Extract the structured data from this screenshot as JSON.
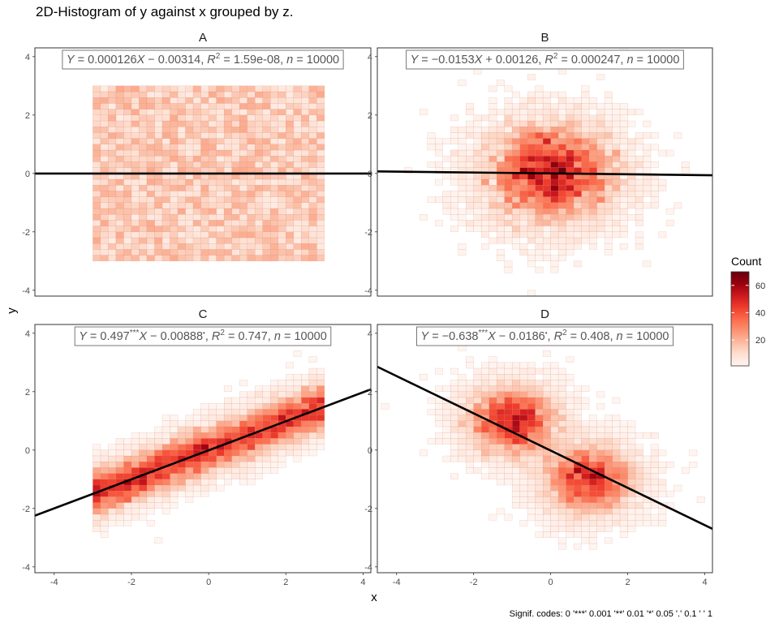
{
  "title": "2D-Histogram of y against x grouped by z.",
  "xlabel": "x",
  "ylabel": "y",
  "caption": "Signif. codes:  0 '***' 0.001 '**' 0.01 '*' 0.05 '.' 0.1 ' ' 1",
  "legend": {
    "title": "Count",
    "ticks": [
      20,
      40,
      60
    ],
    "range": [
      1,
      70
    ],
    "position": "right",
    "colors": [
      "#fff5f0",
      "#fee0d2",
      "#fcbba1",
      "#fc9272",
      "#fb6a4a",
      "#ef3b2c",
      "#cb181d",
      "#99000d",
      "#67000d"
    ]
  },
  "chart_data": {
    "type": "heatmap",
    "facet_by": "z",
    "xlim": [
      -4.5,
      4.2
    ],
    "ylim": [
      -4.2,
      4.3
    ],
    "x_ticks": [
      -4,
      -2,
      0,
      2,
      4
    ],
    "y_ticks": [
      -4,
      -2,
      0,
      2,
      4
    ],
    "grid": false,
    "bin_width": 0.2,
    "panels": [
      {
        "label": "A",
        "equation": {
          "slope": "0.000126",
          "slope_stars": "",
          "intercept": "0.00314",
          "intercept_sign": "−",
          "intercept_stars": "",
          "r2": "1.59e-08",
          "n": "10000"
        },
        "fit_line": {
          "slope": 0.000126,
          "intercept": -0.00314
        },
        "distribution": {
          "kind": "uniform",
          "x_range": [
            -3,
            3
          ],
          "y_range": [
            -3,
            3
          ],
          "count_range": [
            5,
            22
          ]
        }
      },
      {
        "label": "B",
        "equation": {
          "slope": "−0.0153",
          "slope_stars": "",
          "intercept": "0.00126",
          "intercept_sign": "+",
          "intercept_stars": "",
          "r2": "0.000247",
          "n": "10000"
        },
        "fit_line": {
          "slope": -0.0153,
          "intercept": 0.00126
        },
        "distribution": {
          "kind": "normal",
          "centers": [
            [
              0,
              0
            ]
          ],
          "sd": 1,
          "correlation": 0,
          "max_count": 70
        }
      },
      {
        "label": "C",
        "equation": {
          "slope": "0.497",
          "slope_stars": "***",
          "intercept": "0.00888",
          "intercept_sign": "−",
          "intercept_stars": "•",
          "r2": "0.747",
          "n": "10000"
        },
        "fit_line": {
          "slope": 0.497,
          "intercept": -0.00888
        },
        "distribution": {
          "kind": "uniform-x-linear-y",
          "x_range": [
            -3,
            3
          ],
          "slope": 0.5,
          "noise_sd": 0.5,
          "max_count": 60
        }
      },
      {
        "label": "D",
        "equation": {
          "slope": "−0.638",
          "slope_stars": "***",
          "intercept": "0.0186",
          "intercept_sign": "−",
          "intercept_stars": "•",
          "r2": "0.408",
          "n": "10000"
        },
        "fit_line": {
          "slope": -0.638,
          "intercept": -0.0186
        },
        "distribution": {
          "kind": "bimodal-normal",
          "centers": [
            [
              -1,
              1
            ],
            [
              1,
              -1
            ]
          ],
          "sd": 0.7,
          "max_count": 60
        }
      }
    ]
  }
}
